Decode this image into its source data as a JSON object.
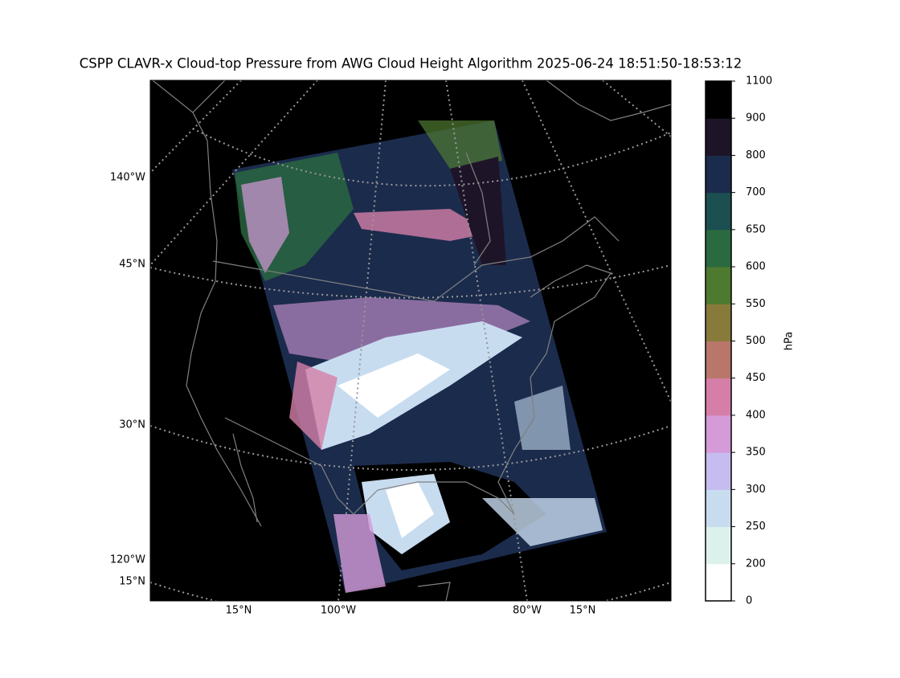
{
  "title": "CSPP CLAVR-x Cloud-top Pressure from AWG Cloud Height Algorithm 2025-06-24 18:51:50-18:53:12",
  "map": {
    "left_labels": [
      "140°W",
      "45°N",
      "30°N",
      "120°W",
      "15°N"
    ],
    "bottom_labels": [
      "15°N",
      "100°W",
      "80°W",
      "15°N"
    ]
  },
  "colorbar": {
    "label": "hPa",
    "ticks": [
      0,
      200,
      250,
      300,
      350,
      400,
      450,
      500,
      550,
      600,
      650,
      700,
      800,
      900,
      1100
    ],
    "colors": [
      "#ffffff",
      "#dcf1ec",
      "#c8dcf0",
      "#c6bcef",
      "#d59ad8",
      "#d57fa8",
      "#b8776a",
      "#887a3a",
      "#4e7a30",
      "#2a6a40",
      "#1b4f50",
      "#1b2b4c",
      "#1e1428",
      "#000000"
    ]
  }
}
